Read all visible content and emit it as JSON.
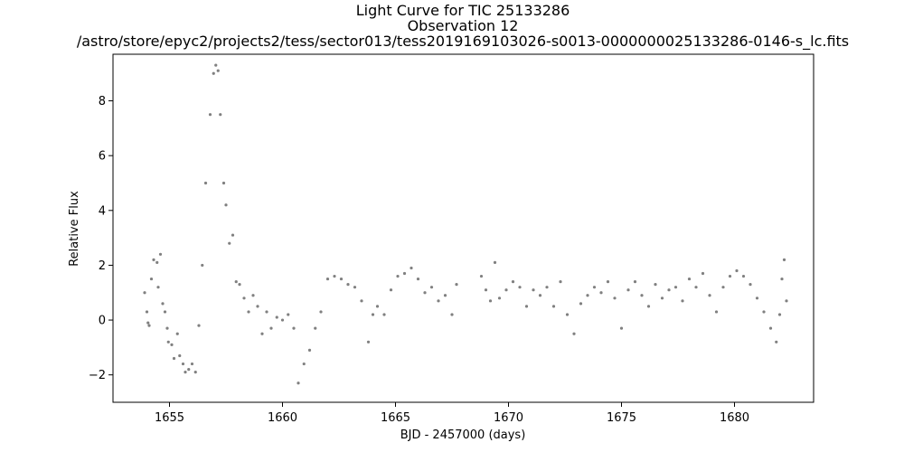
{
  "chart_data": {
    "type": "scatter",
    "title": [
      "Light Curve for TIC 25133286",
      "Observation 12",
      "/astro/store/epyc2/projects2/tess/sector013/tess2019169103026-s0013-0000000025133286-0146-s_lc.fits"
    ],
    "xlabel": "BJD - 2457000 (days)",
    "ylabel": "Relative Flux",
    "xlim": [
      1652.5,
      1683.5
    ],
    "ylim": [
      -3.0,
      9.7
    ],
    "xticks": [
      1655,
      1660,
      1665,
      1670,
      1675,
      1680
    ],
    "xtick_labels": [
      "1655",
      "1660",
      "1665",
      "1670",
      "1675",
      "1680"
    ],
    "yticks": [
      -2,
      0,
      2,
      4,
      6,
      8
    ],
    "ytick_labels": [
      "−2",
      "0",
      "2",
      "4",
      "6",
      "8"
    ],
    "grid": false,
    "marker_color": "#808080",
    "series": [
      {
        "x": [
          1653.9,
          1654.0,
          1654.05,
          1654.1,
          1654.2,
          1654.3,
          1654.45,
          1654.5,
          1654.6,
          1654.7,
          1654.8,
          1654.9,
          1654.95,
          1655.1,
          1655.2,
          1655.35,
          1655.45,
          1655.6,
          1655.7,
          1655.85,
          1656.0,
          1656.15,
          1656.3,
          1656.45,
          1656.6,
          1656.8,
          1656.95,
          1657.05,
          1657.15,
          1657.25,
          1657.4,
          1657.5,
          1657.65,
          1657.8,
          1657.95,
          1658.1,
          1658.3,
          1658.5,
          1658.7,
          1658.9,
          1659.1,
          1659.3,
          1659.5,
          1659.75,
          1660.0,
          1660.25,
          1660.5,
          1660.7,
          1660.95,
          1661.2,
          1661.45,
          1661.7,
          1662.0,
          1662.3,
          1662.6,
          1662.9,
          1663.2,
          1663.5,
          1663.8,
          1664.0,
          1664.2,
          1664.5,
          1664.8,
          1665.1,
          1665.4,
          1665.7,
          1666.0,
          1666.3,
          1666.6,
          1666.9,
          1667.2,
          1667.5,
          1667.7,
          1668.8,
          1669.0,
          1669.2,
          1669.4,
          1669.6,
          1669.9,
          1670.2,
          1670.5,
          1670.8,
          1671.1,
          1671.4,
          1671.7,
          1672.0,
          1672.3,
          1672.6,
          1672.9,
          1673.2,
          1673.5,
          1673.8,
          1674.1,
          1674.4,
          1674.7,
          1675.0,
          1675.3,
          1675.6,
          1675.9,
          1676.2,
          1676.5,
          1676.8,
          1677.1,
          1677.4,
          1677.7,
          1678.0,
          1678.3,
          1678.6,
          1678.9,
          1679.2,
          1679.5,
          1679.8,
          1680.1,
          1680.4,
          1680.7,
          1681.0,
          1681.3,
          1681.6,
          1681.85,
          1682.0,
          1682.1,
          1682.2,
          1682.3
        ],
        "y": [
          1.0,
          0.3,
          -0.1,
          -0.2,
          1.5,
          2.2,
          2.1,
          1.2,
          2.4,
          0.6,
          0.3,
          -0.3,
          -0.8,
          -0.9,
          -1.4,
          -0.5,
          -1.3,
          -1.6,
          -1.9,
          -1.8,
          -1.6,
          -1.9,
          -0.2,
          2.0,
          5.0,
          7.5,
          9.0,
          9.3,
          9.1,
          7.5,
          5.0,
          4.2,
          2.8,
          3.1,
          1.4,
          1.3,
          0.8,
          0.3,
          0.9,
          0.5,
          -0.5,
          0.3,
          -0.3,
          0.1,
          0.0,
          0.2,
          -0.3,
          -2.3,
          -1.6,
          -1.1,
          -0.3,
          0.3,
          1.5,
          1.6,
          1.5,
          1.3,
          1.2,
          0.7,
          -0.8,
          0.2,
          0.5,
          0.2,
          1.1,
          1.6,
          1.7,
          1.9,
          1.5,
          1.0,
          1.2,
          0.7,
          0.9,
          0.2,
          1.3,
          1.6,
          1.1,
          0.7,
          2.1,
          0.8,
          1.1,
          1.4,
          1.2,
          0.5,
          1.1,
          0.9,
          1.2,
          0.5,
          1.4,
          0.2,
          -0.5,
          0.6,
          0.9,
          1.2,
          1.0,
          1.4,
          0.8,
          -0.3,
          1.1,
          1.4,
          0.9,
          0.5,
          1.3,
          0.8,
          1.1,
          1.2,
          0.7,
          1.5,
          1.2,
          1.7,
          0.9,
          0.3,
          1.2,
          1.6,
          1.8,
          1.6,
          1.3,
          0.8,
          0.3,
          -0.3,
          -0.8,
          0.2,
          1.5,
          2.2,
          0.7
        ]
      }
    ]
  }
}
